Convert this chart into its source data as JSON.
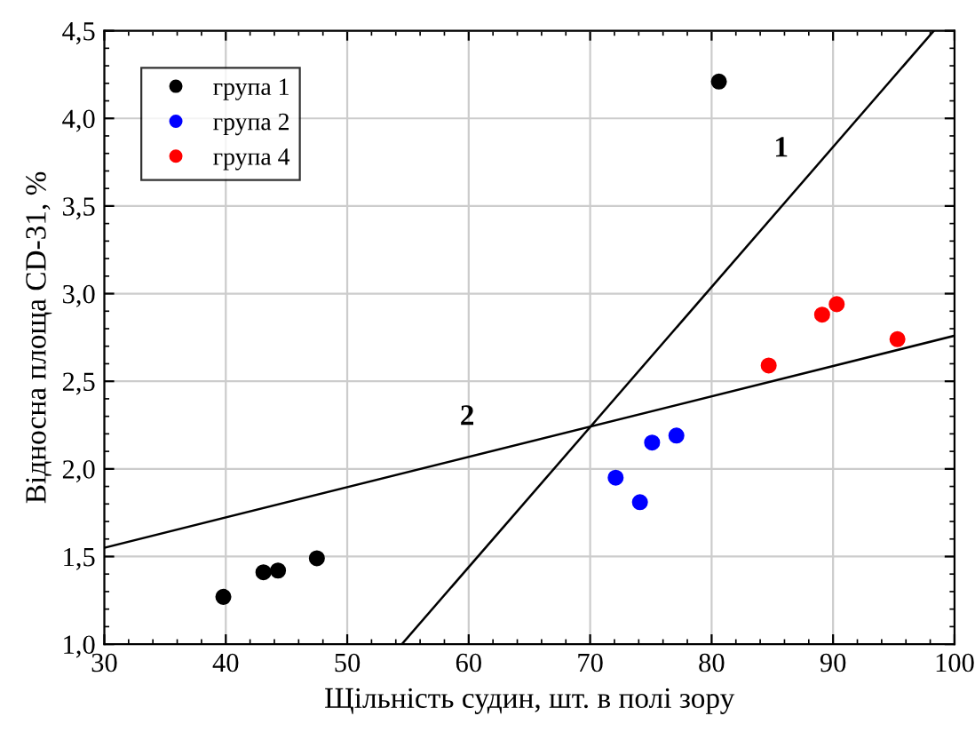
{
  "chart_data": {
    "type": "scatter",
    "xlabel": "Щільність судин, шт. в полі зору",
    "ylabel": "Відносна площа CD-31, %",
    "xlim": [
      30,
      100
    ],
    "xticks": [
      30,
      40,
      50,
      60,
      70,
      80,
      90,
      100
    ],
    "ylim": [
      1.0,
      4.5
    ],
    "yticks": [
      {
        "value": 1.0,
        "label": "1,0"
      },
      {
        "value": 1.5,
        "label": "1,5"
      },
      {
        "value": 2.0,
        "label": "2,0"
      },
      {
        "value": 2.5,
        "label": "2,5"
      },
      {
        "value": 3.0,
        "label": "3,0"
      },
      {
        "value": 3.5,
        "label": "3,5"
      },
      {
        "value": 4.0,
        "label": "4,0"
      },
      {
        "value": 4.5,
        "label": "4,5"
      }
    ],
    "grid": true,
    "legend": "top left",
    "marker": "circle",
    "series": [
      {
        "name": "група 1",
        "color": "#000000",
        "x": [
          39.8,
          43.1,
          44.3,
          47.5,
          80.6
        ],
        "values": [
          1.27,
          1.41,
          1.42,
          1.49,
          4.21
        ]
      },
      {
        "name": "група 2",
        "color": "#0000ff",
        "x": [
          72.1,
          74.1,
          75.1,
          77.1
        ],
        "values": [
          1.95,
          1.81,
          2.15,
          2.19
        ]
      },
      {
        "name": "група 4",
        "color": "#ff0000",
        "x": [
          84.7,
          89.1,
          90.3,
          95.3
        ],
        "values": [
          2.59,
          2.88,
          2.94,
          2.74
        ]
      },
      {
        "type": "line",
        "name": "1",
        "color": "#000000",
        "marker": "none",
        "x": [
          54.5,
          98.3
        ],
        "values": [
          1.0,
          4.5
        ]
      },
      {
        "type": "line",
        "name": "2",
        "color": "#000000",
        "marker": "none",
        "x": [
          30,
          100
        ],
        "values": [
          1.55,
          2.76
        ]
      }
    ]
  }
}
